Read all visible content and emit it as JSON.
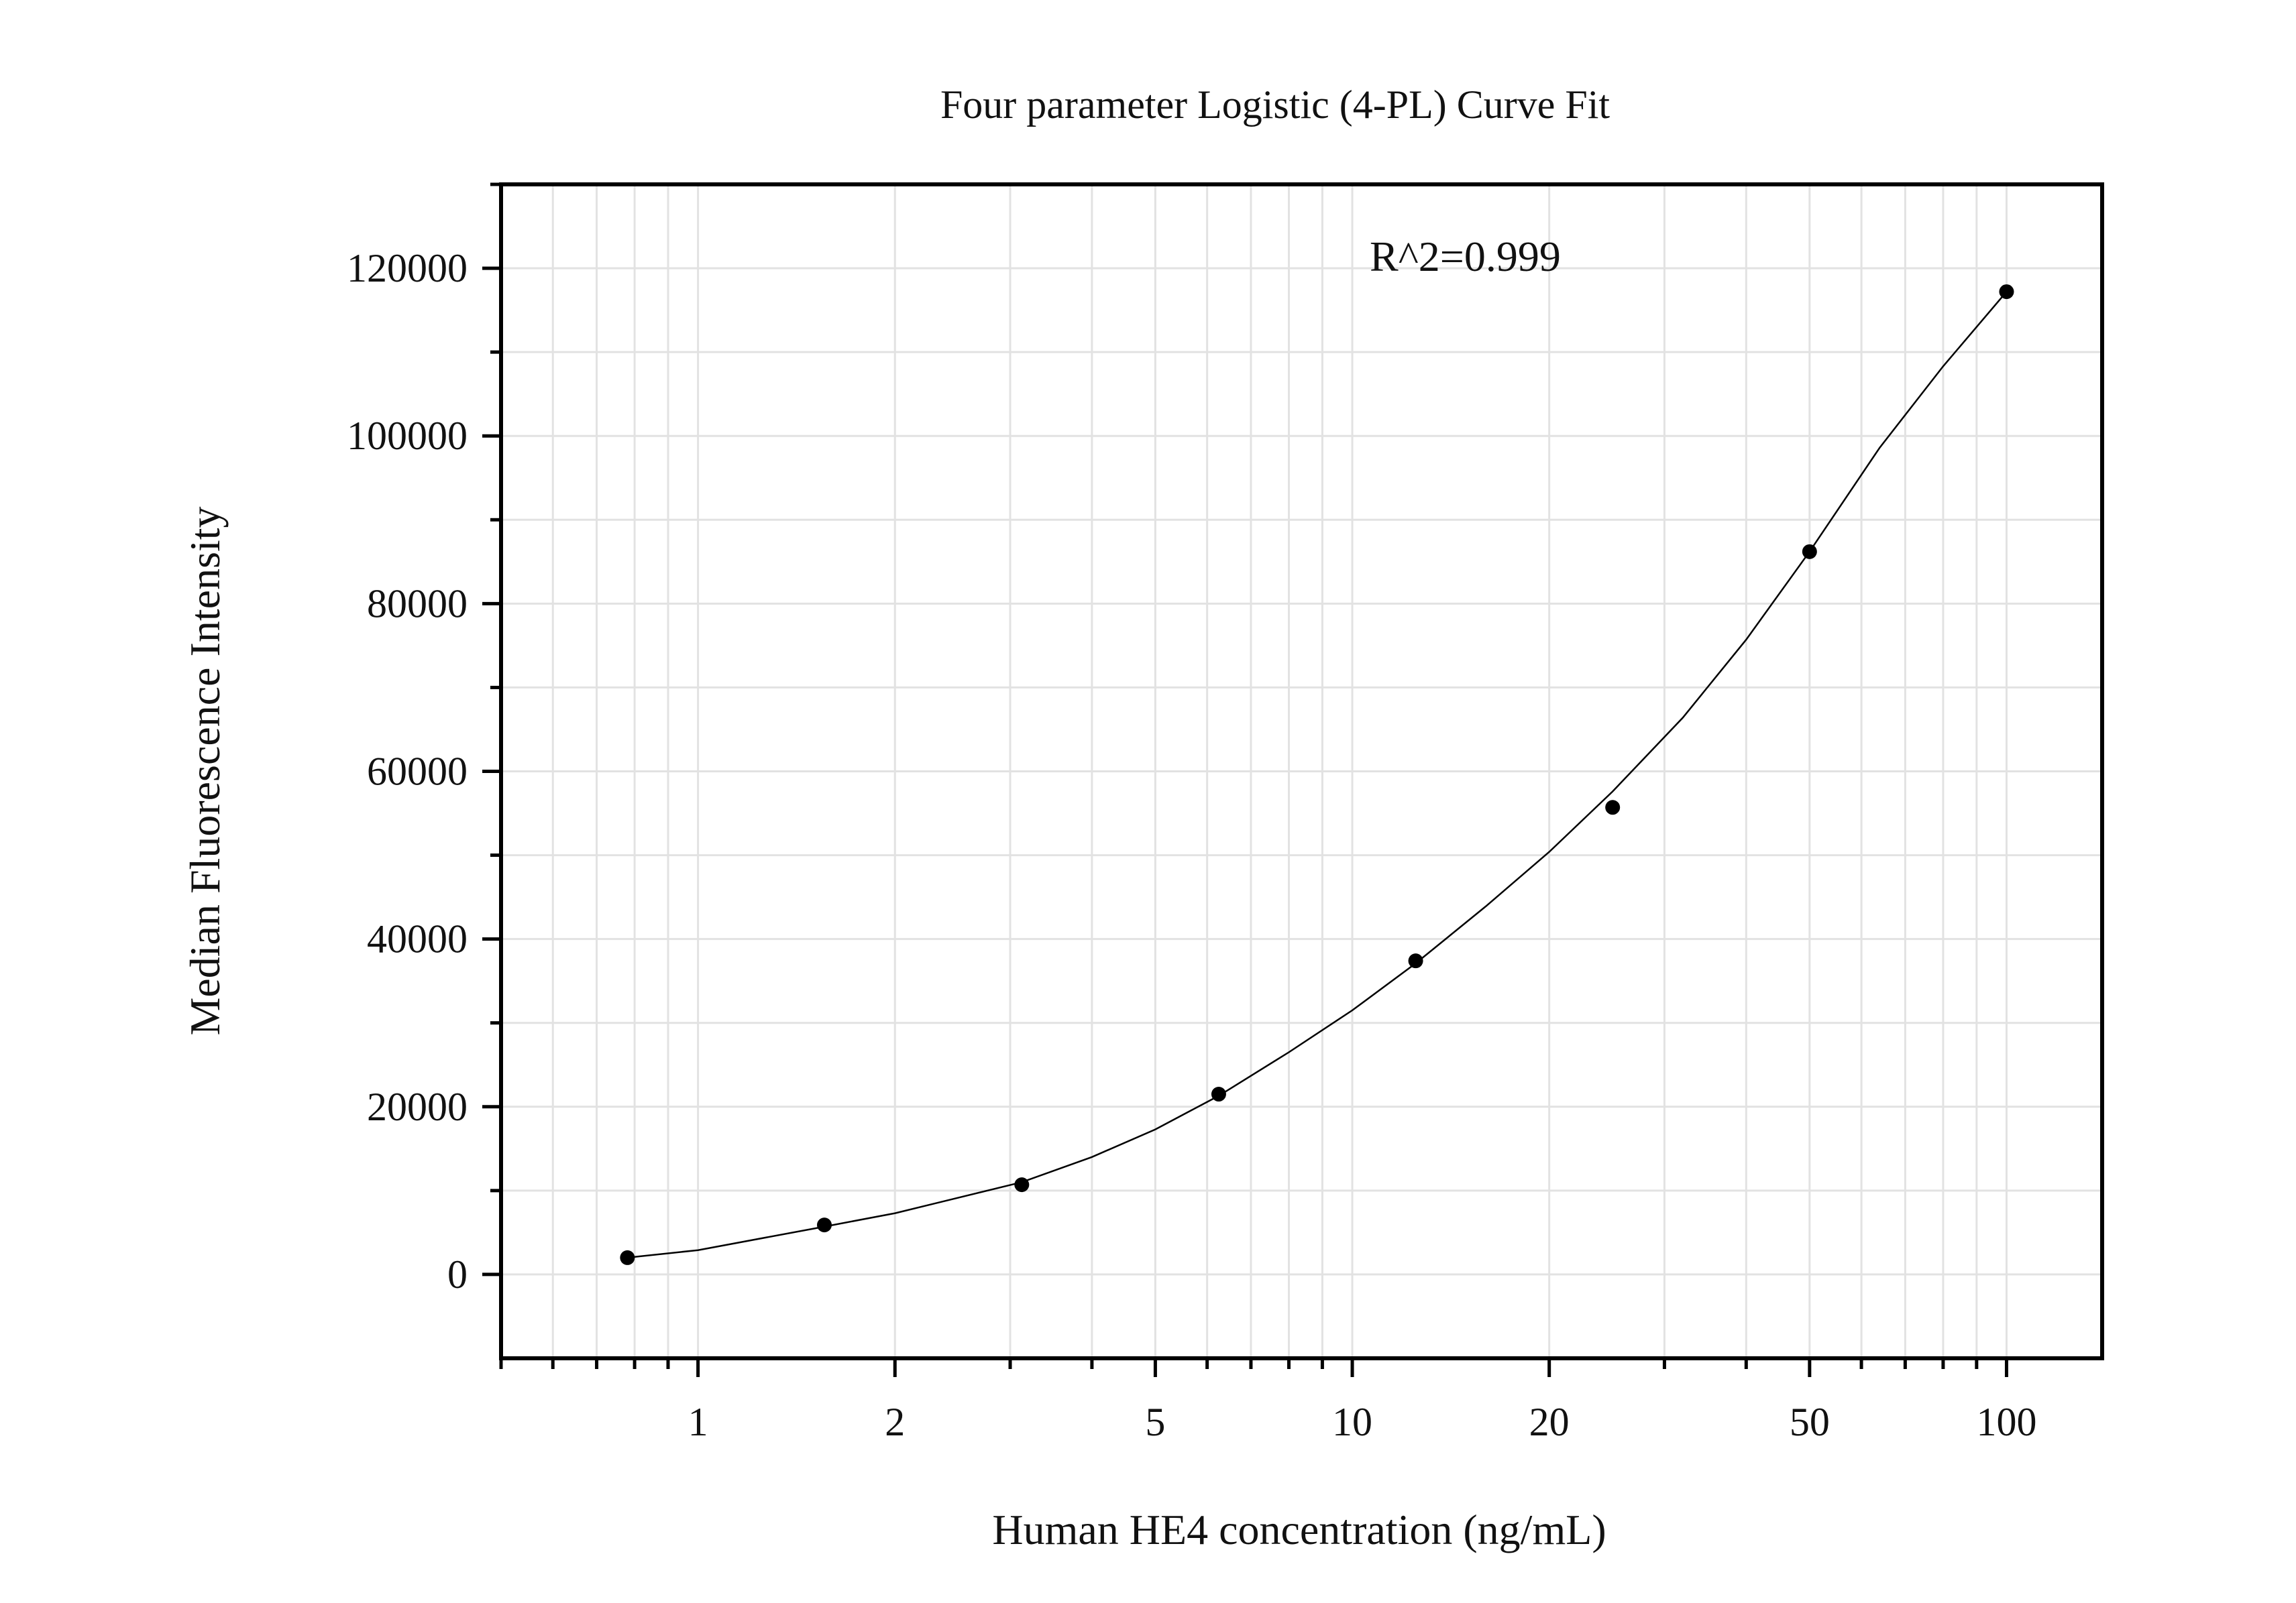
{
  "chart_data": {
    "type": "scatter",
    "title": "Four parameter Logistic (4-PL) Curve Fit",
    "xlabel": "Human HE4 concentration (ng/mL)",
    "ylabel": "Median Fluorescence Intensity",
    "annotation": "R^2=0.999",
    "x_scale": "log",
    "xlim": [
      0.5,
      140
    ],
    "ylim": [
      -10000,
      130000
    ],
    "x_ticks": [
      1,
      2,
      5,
      10,
      20,
      50,
      100
    ],
    "x_tick_labels": [
      "1",
      "2",
      "5",
      "10",
      "20",
      "50",
      "100"
    ],
    "y_ticks": [
      0,
      20000,
      40000,
      60000,
      80000,
      100000,
      120000
    ],
    "y_tick_labels": [
      "0",
      "20000",
      "40000",
      "60000",
      "80000",
      "100000",
      "120000"
    ],
    "grid": true,
    "series": [
      {
        "type": "scatter",
        "x": [
          0.78,
          1.56,
          3.125,
          6.25,
          12.5,
          25,
          50,
          100
        ],
        "y": [
          2000,
          5900,
          10700,
          21500,
          37400,
          55700,
          86200,
          117200
        ]
      }
    ],
    "fit_curve": {
      "type": "line",
      "model": "4-PL",
      "x": [
        0.78,
        1.0,
        1.56,
        2.0,
        3.125,
        4.0,
        5.0,
        6.25,
        8.0,
        10.0,
        12.5,
        16.0,
        20.0,
        25.0,
        32.0,
        40.0,
        50.0,
        64.0,
        80.0,
        100.0
      ],
      "y": [
        2000,
        2900,
        5700,
        7300,
        11000,
        14000,
        17300,
        21300,
        26500,
        31500,
        37100,
        43900,
        50400,
        57600,
        66400,
        75700,
        86200,
        98600,
        108300,
        117200
      ]
    }
  }
}
